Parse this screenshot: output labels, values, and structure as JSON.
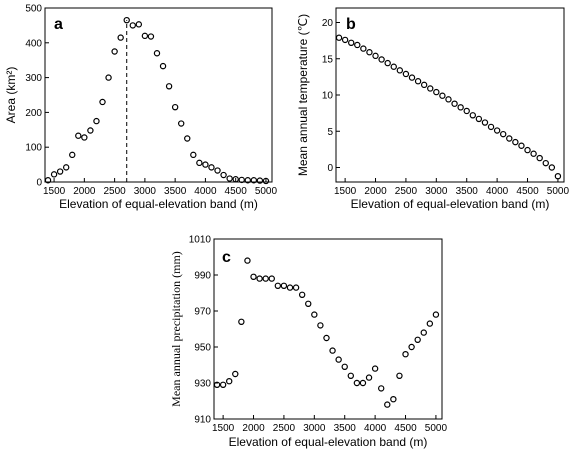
{
  "chart_data": [
    {
      "panel": "a",
      "type": "scatter",
      "xlabel": "Elevation of equal-elevation band (m)",
      "ylabel": "Area (km²)",
      "xlim": [
        1350,
        5100
      ],
      "ylim": [
        0,
        500
      ],
      "xticks": [
        1500,
        2000,
        2500,
        3000,
        3500,
        4000,
        4500,
        5000
      ],
      "yticks": [
        0,
        100,
        200,
        300,
        400,
        500
      ],
      "vline_x": 2700,
      "x": [
        1400,
        1500,
        1600,
        1700,
        1800,
        1900,
        2000,
        2100,
        2200,
        2300,
        2400,
        2500,
        2600,
        2700,
        2800,
        2900,
        3000,
        3100,
        3200,
        3300,
        3400,
        3500,
        3600,
        3700,
        3800,
        3900,
        4000,
        4100,
        4200,
        4300,
        4400,
        4500,
        4600,
        4700,
        4800,
        4900,
        5000
      ],
      "y": [
        5,
        22,
        30,
        42,
        78,
        133,
        128,
        148,
        175,
        230,
        300,
        375,
        415,
        465,
        450,
        453,
        420,
        418,
        370,
        333,
        275,
        215,
        168,
        125,
        78,
        55,
        50,
        42,
        33,
        20,
        10,
        8,
        6,
        5,
        5,
        4,
        3
      ]
    },
    {
      "panel": "b",
      "type": "scatter",
      "xlabel": "Elevation of equal-elevation band (m)",
      "ylabel": "Mean annual temperature (℃)",
      "xlim": [
        1350,
        5100
      ],
      "ylim": [
        -2,
        22
      ],
      "xticks": [
        1500,
        2000,
        2500,
        3000,
        3500,
        4000,
        4500,
        5000
      ],
      "yticks": [
        0,
        5,
        10,
        15,
        20
      ],
      "x": [
        1400,
        1500,
        1600,
        1700,
        1800,
        1900,
        2000,
        2100,
        2200,
        2300,
        2400,
        2500,
        2600,
        2700,
        2800,
        2900,
        3000,
        3100,
        3200,
        3300,
        3400,
        3500,
        3600,
        3700,
        3800,
        3900,
        4000,
        4100,
        4200,
        4300,
        4400,
        4500,
        4600,
        4700,
        4800,
        4900,
        5000
      ],
      "y": [
        17.9,
        17.6,
        17.2,
        16.9,
        16.4,
        15.9,
        15.4,
        14.9,
        14.4,
        13.9,
        13.4,
        12.9,
        12.4,
        11.9,
        11.4,
        10.9,
        10.4,
        9.9,
        9.4,
        8.8,
        8.3,
        7.8,
        7.2,
        6.7,
        6.2,
        5.6,
        5.1,
        4.6,
        4.0,
        3.5,
        3.0,
        2.4,
        1.9,
        1.3,
        0.6,
        0.0,
        -1.2
      ]
    },
    {
      "panel": "c",
      "type": "scatter",
      "xlabel": "Elevation of equal-elevation band (m)",
      "ylabel": "Mean annual precipitation (mm)",
      "xlim": [
        1350,
        5100
      ],
      "ylim": [
        910,
        1010
      ],
      "xticks": [
        1500,
        2000,
        2500,
        3000,
        3500,
        4000,
        4500,
        5000
      ],
      "yticks": [
        910,
        930,
        950,
        970,
        990,
        1010
      ],
      "x": [
        1400,
        1500,
        1600,
        1700,
        1800,
        1900,
        2000,
        2100,
        2200,
        2300,
        2400,
        2500,
        2600,
        2700,
        2800,
        2900,
        3000,
        3100,
        3200,
        3300,
        3400,
        3500,
        3600,
        3700,
        3800,
        3900,
        4000,
        4100,
        4200,
        4300,
        4400,
        4500,
        4600,
        4700,
        4800,
        4900,
        5000
      ],
      "y": [
        929,
        929,
        931,
        935,
        964,
        998,
        989,
        988,
        988,
        988,
        984,
        984,
        983,
        983,
        979,
        974,
        968,
        962,
        955,
        948,
        943,
        939,
        934,
        930,
        930,
        933,
        938,
        927,
        918,
        921,
        934,
        946,
        950,
        954,
        958,
        963,
        968
      ]
    }
  ],
  "panels": {
    "a": {
      "letter": "a",
      "ylabel": "Area (km²)",
      "xlabel": "Elevation of equal-elevation band (m)"
    },
    "b": {
      "letter": "b",
      "ylabel": "Mean annual temperature (℃)",
      "xlabel": "Elevation of equal-elevation band (m)"
    },
    "c": {
      "letter": "c",
      "ylabel": "Mean annual precipitation (mm)",
      "xlabel": "Elevation of equal-elevation band (m)"
    }
  }
}
